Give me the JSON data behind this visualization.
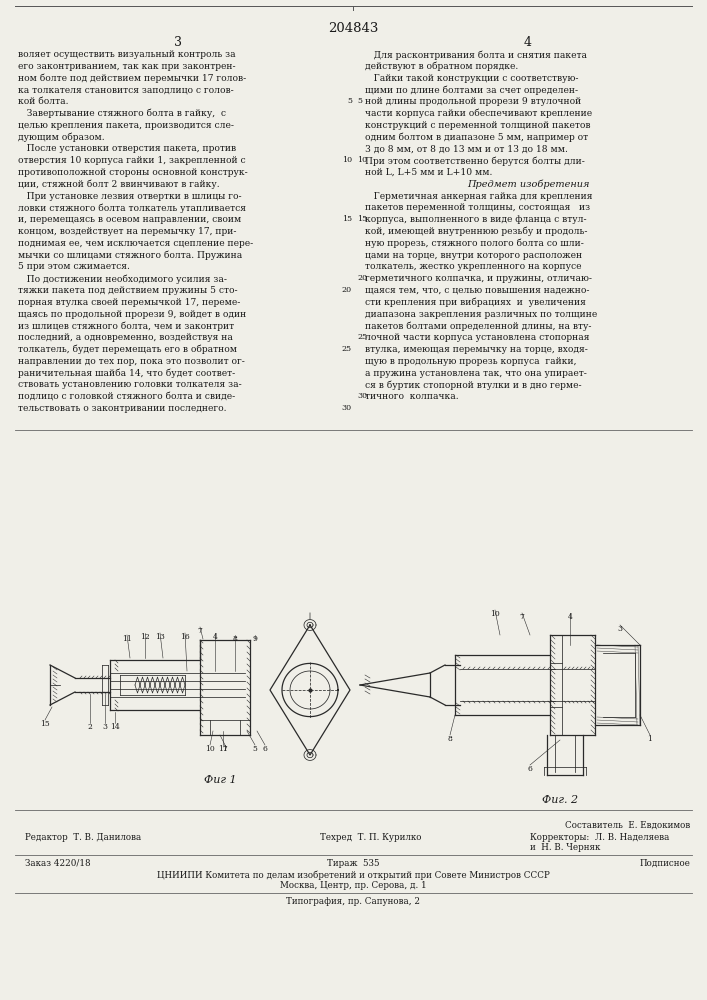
{
  "patent_number": "204843",
  "background_color": "#f0efe8",
  "text_color": "#1a1a1a",
  "col1_lines": [
    "воляет осуществить визуальный контроль за",
    "его законтриванием, так как при законтрен-",
    "ном болте под действием перемычки 17 голов-",
    "ка толкателя становится заподлицо с голов-",
    "кой болта.",
    "   Завертывание стяжного болта в гайку,  с",
    "целью крепления пакета, производится сле-",
    "дующим образом.",
    "   После установки отверстия пакета, против",
    "отверстия 10 корпуса гайки 1, закрепленной с",
    "противоположной стороны основной конструк-",
    "ции, стяжной болт 2 ввинчивают в гайку.",
    "   При установке лезвия отвертки в шлицы го-",
    "ловки стяжного болта толкатель утапливается",
    "и, перемещаясь в осевом направлении, своим",
    "концом, воздействует на перемычку 17, при-",
    "поднимая ее, чем исключается сцепление пере-",
    "мычки со шлицами стяжного болта. Пружина",
    "5 при этом сжимается.",
    "   По достижении необходимого усилия за-",
    "тяжки пакета под действием пружины 5 сто-",
    "порная втулка своей перемычкой 17, переме-",
    "щаясь по продольной прорези 9, войдет в один",
    "из шлицев стяжного болта, чем и законтрит",
    "последний, а одновременно, воздействуя на",
    "толкатель, будет перемещать его в обратном",
    "направлении до тех пор, пока это позволит ог-",
    "раничительная шайба 14, что будет соответ-",
    "ствовать установлению головки толкателя за-",
    "подлицо с головкой стяжного болта и свиде-",
    "тельствовать о законтривании последнего."
  ],
  "col1_line_nums": [
    [
      5,
      4
    ],
    [
      10,
      9
    ],
    [
      15,
      14
    ],
    [
      20,
      20
    ],
    [
      25,
      25
    ],
    [
      30,
      30
    ]
  ],
  "col2_lines": [
    "   Для расконтривания болта и снятия пакета",
    "действуют в обратном порядке.",
    "   Гайки такой конструкции с соответствую-",
    "щими по длине болтами за счет определен-",
    "ной длины продольной прорези 9 втулочной",
    "части корпуса гайки обеспечивают крепление",
    "конструкций с переменной толщиной пакетов",
    "одним болтом в диапазоне 5 мм, например от",
    "3 до 8 мм, от 8 до 13 мм и от 13 до 18 мм.",
    "При этом соответственно берутся болты дли-",
    "ной L, L+5 мм и L+10 мм.",
    "Предмет изобретения",
    "   Герметичная анкерная гайка для крепления",
    "пакетов переменной толщины, состоящая   из",
    "корпуса, выполненного в виде фланца с втул-",
    "кой, имеющей внутреннюю резьбу и продоль-",
    "ную прорезь, стяжного полого болта со шли-",
    "цами на торце, внутри которого расположен",
    "толкатель, жестко укрепленного на корпусе",
    "герметичного колпачка, и пружины, отличаю-",
    "щаяся тем, что, с целью повышения надежно-",
    "сти крепления при вибрациях  и  увеличения",
    "диапазона закрепления различных по толщине",
    "пакетов болтами определенной длины, на вту-",
    "лочной части корпуса установлена стопорная",
    "втулка, имеющая перемычку на торце, входя-",
    "щую в продольную прорезь корпуса  гайки,",
    "а пружина установлена так, что она упирает-",
    "ся в буртик стопорной втулки и в дно герме-",
    "тичного  колпачка."
  ],
  "col2_line_nums": [
    [
      5,
      4
    ],
    [
      10,
      9
    ],
    [
      15,
      14
    ],
    [
      20,
      19
    ],
    [
      25,
      24
    ],
    [
      30,
      29
    ]
  ],
  "footer_sestavitel": "Составитель  Е. Евдокимов",
  "footer_row1_left": "Редактор  Т. В. Данилова",
  "footer_row1_mid": "Техред  Т. П. Курилко",
  "footer_row1_right": "Корректоры:  Л. В. Наделяева",
  "footer_row2_right": "и  Н. В. Черняк",
  "footer_zakaz": "Заказ 4220/18",
  "footer_tirazh": "Тираж  535",
  "footer_podpisnoe": "Подписное",
  "footer_cnipi": "ЦНИИПИ Комитета по делам изобретений и открытий при Совете Министров СССР",
  "footer_moscow": "Москва, Центр, пр. Серова, д. 1",
  "footer_tipograf": "Типография, пр. Сапунова, 2",
  "fig1_label": "Фиг 1",
  "fig2_label": "Фиг. 2"
}
